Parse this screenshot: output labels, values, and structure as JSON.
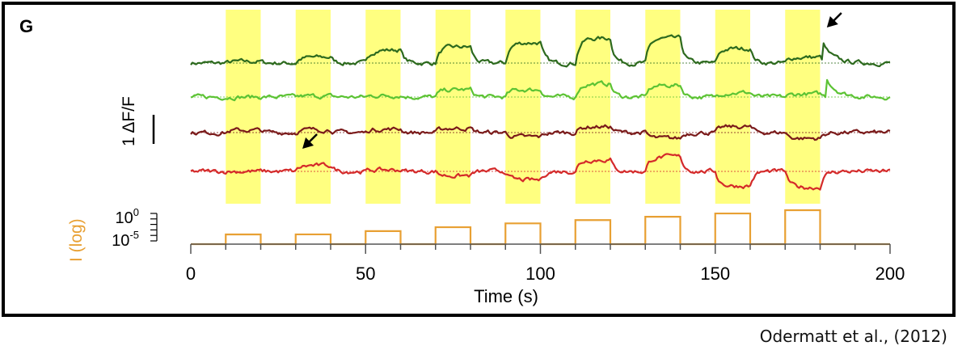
{
  "citation": "Odermatt et al., (2012)",
  "colors": {
    "stimulus_highlight": "#ffff80",
    "light_trace": "#e8a033",
    "dark_green": "#2d6a1e",
    "light_green": "#5cc334",
    "dark_red": "#7a1a1a",
    "red": "#d42a2a",
    "arrow": "#000000"
  },
  "chart_data": {
    "type": "line",
    "panel_label": "G",
    "xlabel": "Time (s)",
    "xlim": [
      0,
      200
    ],
    "xticks": [
      0,
      50,
      100,
      150,
      200
    ],
    "scale_bar": {
      "label": "1  ΔF/F",
      "value": 1
    },
    "light_axis": {
      "label": "I (log)",
      "tick_labels": [
        {
          "base": "10",
          "exp": "0"
        },
        {
          "base": "10",
          "exp": "-5"
        }
      ]
    },
    "stimulus_periods": [
      [
        10,
        20
      ],
      [
        30,
        40
      ],
      [
        50,
        60
      ],
      [
        70,
        80
      ],
      [
        90,
        100
      ],
      [
        110,
        120
      ],
      [
        130,
        140
      ],
      [
        150,
        160
      ],
      [
        170,
        180
      ]
    ],
    "light_steps": [
      {
        "start": 10,
        "end": 20,
        "log_intensity": -5.0
      },
      {
        "start": 30,
        "end": 40,
        "log_intensity": -4.4
      },
      {
        "start": 50,
        "end": 60,
        "log_intensity": -3.8
      },
      {
        "start": 70,
        "end": 80,
        "log_intensity": -3.1
      },
      {
        "start": 90,
        "end": 100,
        "log_intensity": -2.4
      },
      {
        "start": 110,
        "end": 120,
        "log_intensity": -1.8
      },
      {
        "start": 130,
        "end": 140,
        "log_intensity": -1.2
      },
      {
        "start": 150,
        "end": 160,
        "log_intensity": -0.6
      },
      {
        "start": 170,
        "end": 180,
        "log_intensity": 0.0
      }
    ],
    "series": [
      {
        "color": "#2d6a1e",
        "step_responses": [
          0.05,
          0.2,
          0.45,
          0.55,
          0.7,
          0.85,
          0.85,
          0.5,
          0.2
        ],
        "transients": [
          {
            "t": 181,
            "amp": 0.55
          }
        ]
      },
      {
        "color": "#5cc334",
        "step_responses": [
          0.0,
          0.03,
          0.05,
          0.25,
          0.25,
          0.45,
          0.4,
          0.15,
          0.1
        ],
        "transients": [
          {
            "t": 182,
            "amp": 0.6
          }
        ]
      },
      {
        "color": "#7a1a1a",
        "step_responses": [
          0.08,
          0.1,
          0.12,
          0.15,
          -0.15,
          0.2,
          -0.2,
          0.2,
          -0.2
        ],
        "transients": []
      },
      {
        "color": "#d42a2a",
        "step_responses": [
          0.0,
          0.2,
          0.05,
          -0.15,
          -0.3,
          0.4,
          0.5,
          0.5,
          0.55
        ],
        "step_sign": [
          1,
          1,
          1,
          -1,
          -1,
          1,
          1,
          -1,
          -1
        ],
        "transients": []
      }
    ],
    "arrows": [
      {
        "t": 181,
        "series_index": 0
      },
      {
        "t": 31,
        "series_index": 3
      }
    ]
  }
}
